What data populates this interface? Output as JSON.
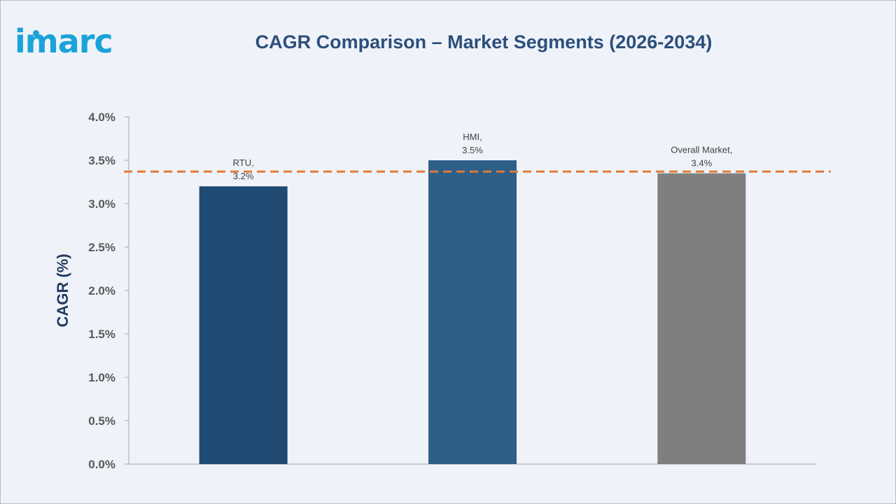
{
  "brand": {
    "logo_text": "imarc",
    "logo_color": "#1aa3d9"
  },
  "chart_data": {
    "type": "bar",
    "title": "CAGR Comparison – Market Segments (2026-2034)",
    "ylabel": "CAGR (%)",
    "xlabel": "",
    "ylim": [
      0,
      4
    ],
    "yticks": [
      {
        "value": 0.0,
        "label": "0.0%"
      },
      {
        "value": 0.5,
        "label": "0.5%"
      },
      {
        "value": 1.0,
        "label": "1.0%"
      },
      {
        "value": 1.5,
        "label": "1.5%"
      },
      {
        "value": 2.0,
        "label": "2.0%"
      },
      {
        "value": 2.5,
        "label": "2.5%"
      },
      {
        "value": 3.0,
        "label": "3.0%"
      },
      {
        "value": 3.5,
        "label": "3.5%"
      },
      {
        "value": 4.0,
        "label": "4.0%"
      }
    ],
    "categories": [
      "RTU",
      "HMI",
      "Overall Market"
    ],
    "values": [
      3.2,
      3.5,
      3.35
    ],
    "bar_colors": [
      "#1f4a72",
      "#2e5f87",
      "#7f7f7f"
    ],
    "data_labels": [
      {
        "name": "RTU,",
        "value": "3.2%"
      },
      {
        "name": "HMI,",
        "value": "3.5%"
      },
      {
        "name": "Overall Market,",
        "value": "3.4%"
      }
    ],
    "reference_line": {
      "value": 3.37,
      "color": "#e07b39",
      "style": "dashed"
    },
    "grid": false,
    "legend": "none"
  }
}
